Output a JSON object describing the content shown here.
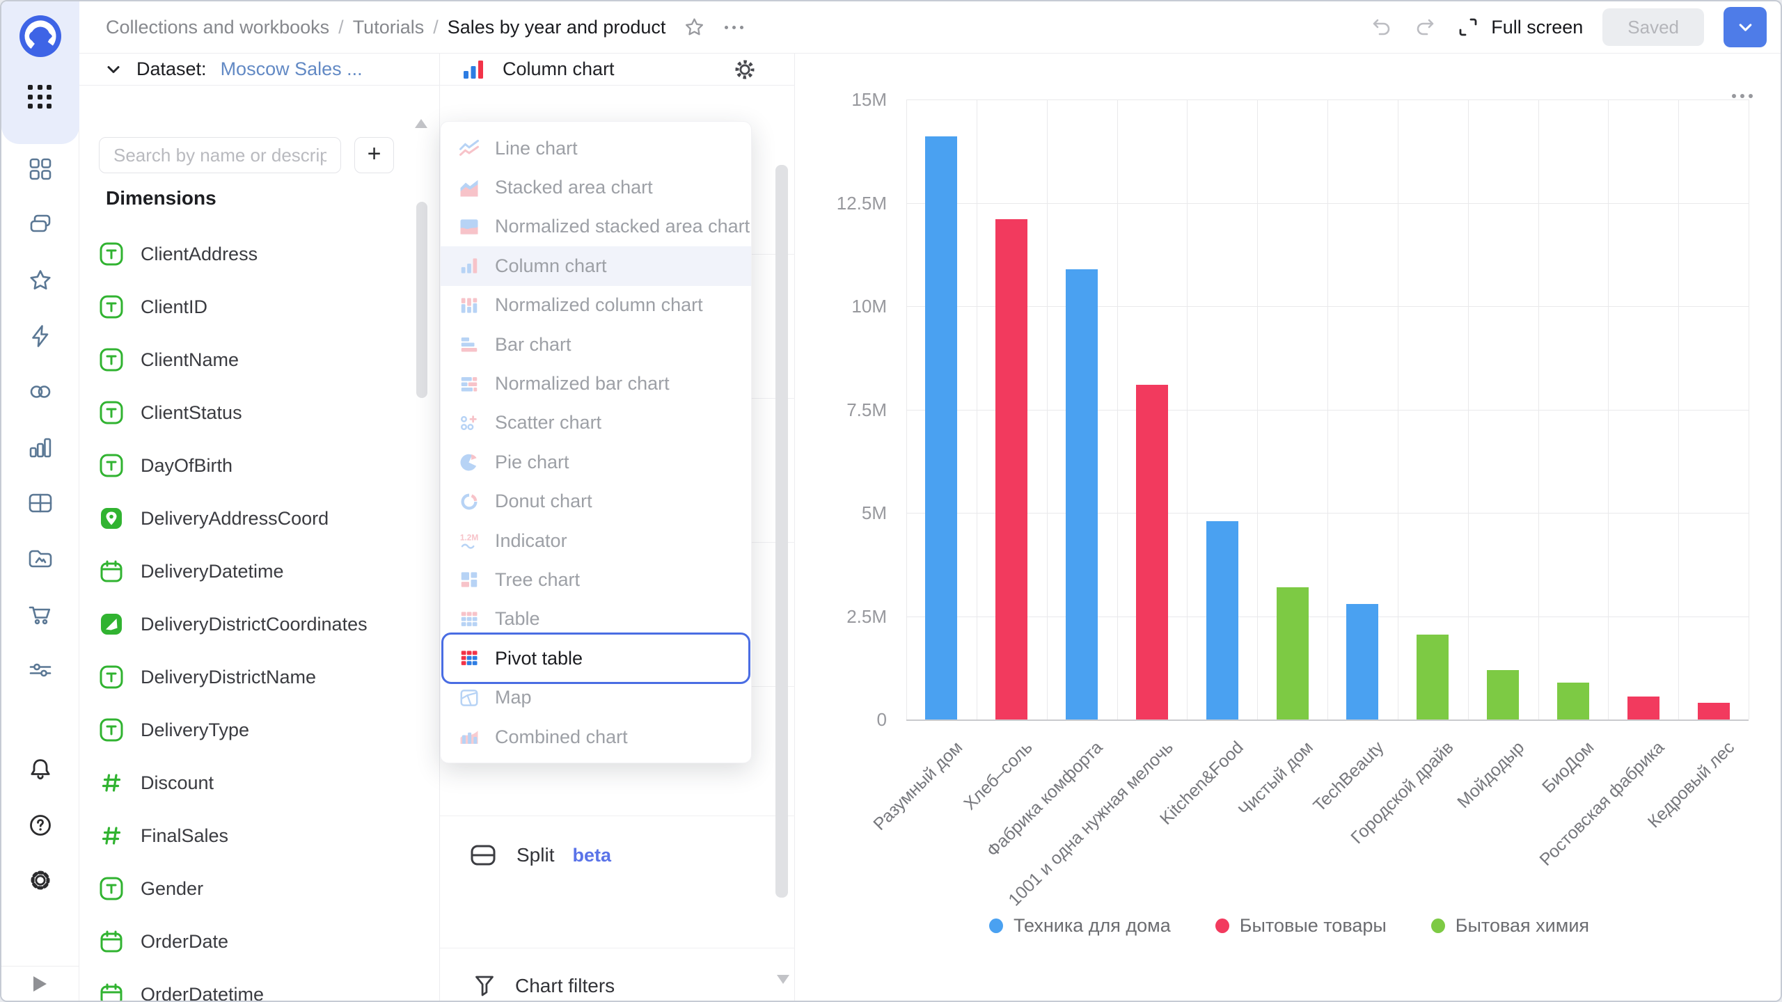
{
  "topbar": {
    "breadcrumbs": [
      "Collections and workbooks",
      "Tutorials",
      "Sales by year and product"
    ],
    "separator": "/",
    "full_screen": "Full screen",
    "saved": "Saved"
  },
  "sidebar": {
    "items": [
      "dashboards",
      "collections",
      "favorites",
      "editor",
      "connections",
      "charts",
      "tables",
      "storage",
      "marketplace",
      "flows"
    ],
    "bottom_items": [
      "notifications-bell",
      "help",
      "settings-gear"
    ],
    "expand": "expand-arrow"
  },
  "dataset_panel": {
    "header_label": "Dataset:",
    "dataset_name": "Moscow Sales ...",
    "search_placeholder": "Search by name or descript",
    "add_label": "+",
    "dimensions_title": "Dimensions",
    "fields": [
      {
        "name": "ClientAddress",
        "type": "string"
      },
      {
        "name": "ClientID",
        "type": "string"
      },
      {
        "name": "ClientName",
        "type": "string"
      },
      {
        "name": "ClientStatus",
        "type": "string"
      },
      {
        "name": "DayOfBirth",
        "type": "string"
      },
      {
        "name": "DeliveryAddressCoord",
        "type": "geopoint"
      },
      {
        "name": "DeliveryDatetime",
        "type": "date"
      },
      {
        "name": "DeliveryDistrictCoordinates",
        "type": "geopolygon"
      },
      {
        "name": "DeliveryDistrictName",
        "type": "string"
      },
      {
        "name": "DeliveryType",
        "type": "string"
      },
      {
        "name": "Discount",
        "type": "number"
      },
      {
        "name": "FinalSales",
        "type": "number"
      },
      {
        "name": "Gender",
        "type": "string"
      },
      {
        "name": "OrderDate",
        "type": "date"
      },
      {
        "name": "OrderDatetime",
        "type": "date"
      }
    ]
  },
  "settings_panel": {
    "chart_type_label": "Column chart",
    "split_label": "Split",
    "split_badge": "beta",
    "chart_filters_label": "Chart filters"
  },
  "chart_menu": {
    "items": [
      {
        "label": "Line chart",
        "icon": "line-chart",
        "state": "default"
      },
      {
        "label": "Stacked area chart",
        "icon": "stacked-area-chart",
        "state": "default"
      },
      {
        "label": "Normalized stacked area chart",
        "icon": "normalized-stacked-area-chart",
        "state": "default"
      },
      {
        "label": "Column chart",
        "icon": "column-chart",
        "state": "selected"
      },
      {
        "label": "Normalized column chart",
        "icon": "normalized-column-chart",
        "state": "default"
      },
      {
        "label": "Bar chart",
        "icon": "bar-chart",
        "state": "default"
      },
      {
        "label": "Normalized bar chart",
        "icon": "normalized-bar-chart",
        "state": "default"
      },
      {
        "label": "Scatter chart",
        "icon": "scatter-chart",
        "state": "default"
      },
      {
        "label": "Pie chart",
        "icon": "pie-chart",
        "state": "default"
      },
      {
        "label": "Donut chart",
        "icon": "donut-chart",
        "state": "default"
      },
      {
        "label": "Indicator",
        "icon": "indicator",
        "state": "default"
      },
      {
        "label": "Tree chart",
        "icon": "tree-chart",
        "state": "default"
      },
      {
        "label": "Table",
        "icon": "table",
        "state": "default"
      },
      {
        "label": "Pivot table",
        "icon": "pivot-table",
        "state": "focused"
      },
      {
        "label": "Map",
        "icon": "map",
        "state": "default"
      },
      {
        "label": "Combined chart",
        "icon": "combined-chart",
        "state": "default"
      }
    ]
  },
  "chart_data": {
    "type": "bar",
    "title": "",
    "xlabel": "",
    "ylabel": "",
    "categories": [
      "Разумный дом",
      "Хлеб–соль",
      "Фабрика комфорта",
      "1001 и одна нужная мелочь",
      "Kitchen&Food",
      "Чистый дом",
      "TechBeauty",
      "Городской драйв",
      "Мойдодыр",
      "БиоДом",
      "Ростовская фабрика",
      "Кедровый лес"
    ],
    "values": [
      14.1,
      12.1,
      10.9,
      8.1,
      4.8,
      3.2,
      2.8,
      2.05,
      1.2,
      0.9,
      0.55,
      0.4
    ],
    "value_unit": "M",
    "point_series": [
      "Техника для дома",
      "Бытовые товары",
      "Техника для дома",
      "Бытовые товары",
      "Техника для дома",
      "Бытовая химия",
      "Техника для дома",
      "Бытовая химия",
      "Бытовая химия",
      "Бытовая химия",
      "Бытовые товары",
      "Бытовые товары"
    ],
    "series": [
      {
        "label": "Техника для дома",
        "color": "#4aa1f1"
      },
      {
        "label": "Бытовые товары",
        "color": "#f23a5e"
      },
      {
        "label": "Бытовая химия",
        "color": "#7dca44"
      }
    ],
    "ylim": [
      0,
      15
    ],
    "yticks": [
      {
        "value": 15,
        "label": "15M"
      },
      {
        "value": 12.5,
        "label": "12.5M"
      },
      {
        "value": 10,
        "label": "10M"
      },
      {
        "value": 7.5,
        "label": "7.5M"
      },
      {
        "value": 5,
        "label": "5M"
      },
      {
        "value": 2.5,
        "label": "2.5M"
      },
      {
        "value": 0,
        "label": "0"
      }
    ],
    "grid": true,
    "xlabel_rotation": -45,
    "legend_position": "bottom"
  },
  "colors": {
    "accent_blue": "#4e7ce8",
    "focus_ring": "#4a6de3",
    "beta_badge": "#5a73e8",
    "dataset_link": "#6289c4",
    "selected_row_bg": "#f1f3fa",
    "field_green": "#31b331",
    "menu_faded_blue": "#b7d3f5",
    "menu_faded_pink": "#f7c3c9",
    "menu_vivid_blue": "#2d7ce2",
    "menu_vivid_red": "#f23348",
    "rail_icon": "#5a7794"
  }
}
